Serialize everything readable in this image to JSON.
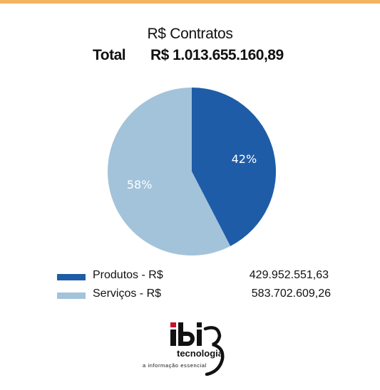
{
  "colors": {
    "top_bar": "#F5B461",
    "produtos": "#1F5CA8",
    "servicos": "#A2C3DA",
    "logo_dot": "#C8102E"
  },
  "header": {
    "title": "R$ Contratos",
    "total_label": "Total",
    "total_value": "R$ 1.013.655.160,89"
  },
  "chart_data": {
    "type": "pie",
    "title": "R$ Contratos",
    "slices": [
      {
        "name": "Produtos - R$",
        "value": 429952551.63,
        "display_value": "429.952.551,63",
        "percent_label": "42%",
        "color": "#1F5CA8"
      },
      {
        "name": "Serviços - R$",
        "value": 583702609.26,
        "display_value": "583.702.609,26",
        "percent_label": "58%",
        "color": "#A2C3DA"
      }
    ],
    "legend_placement": "bottom"
  },
  "logo": {
    "brand": "ibi3",
    "name": "tecnologia",
    "tagline": "a informação essencial"
  }
}
